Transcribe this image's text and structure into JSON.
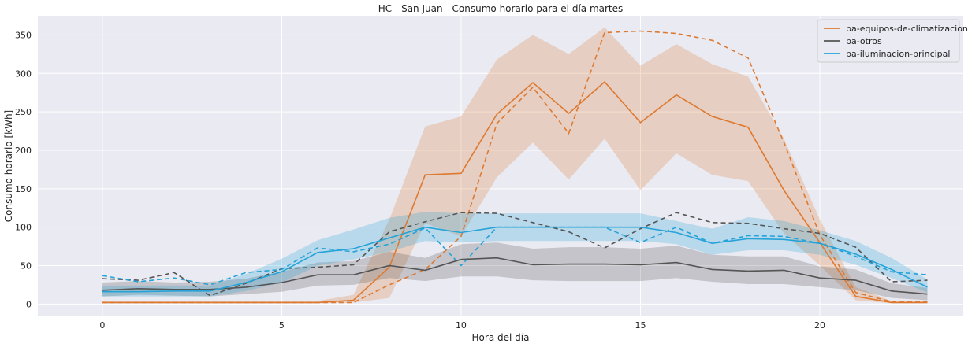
{
  "chart_data": {
    "type": "line",
    "title": "HC - San Juan - Consumo horario para el día martes",
    "xlabel": "Hora del día",
    "ylabel": "Consumo horario [kWh]",
    "xlim": [
      -1.8,
      24.0
    ],
    "ylim": [
      -16,
      375
    ],
    "xticks": [
      0,
      5,
      10,
      15,
      20
    ],
    "yticks": [
      0,
      50,
      100,
      150,
      200,
      250,
      300,
      350
    ],
    "grid": true,
    "legend_position": "top-right",
    "x": [
      0,
      1,
      2,
      3,
      4,
      5,
      6,
      7,
      8,
      9,
      10,
      11,
      12,
      13,
      14,
      15,
      16,
      17,
      18,
      19,
      20,
      21,
      22,
      23
    ],
    "series": [
      {
        "name": "pa-equipos-de-climatizacion",
        "color": "#dd7a32",
        "values": [
          2,
          2,
          2,
          2,
          2,
          2,
          2,
          5,
          48,
          168,
          170,
          247,
          288,
          248,
          289,
          236,
          272,
          244,
          230,
          148,
          80,
          10,
          2,
          2
        ],
        "band_low": [
          1,
          1,
          1,
          1,
          1,
          1,
          1,
          2,
          8,
          105,
          88,
          165,
          210,
          162,
          215,
          148,
          196,
          168,
          160,
          92,
          50,
          5,
          1,
          1
        ],
        "band_high": [
          4,
          4,
          4,
          4,
          4,
          4,
          4,
          12,
          110,
          231,
          244,
          318,
          350,
          325,
          360,
          310,
          338,
          312,
          296,
          215,
          110,
          22,
          4,
          4
        ],
        "dashed_values": [
          2,
          2,
          2,
          2,
          2,
          2,
          2,
          2,
          25,
          45,
          88,
          235,
          282,
          222,
          353,
          355,
          352,
          343,
          320,
          210,
          90,
          15,
          3,
          3
        ]
      },
      {
        "name": "pa-otros",
        "color": "#555555",
        "values": [
          18,
          20,
          19,
          19,
          22,
          28,
          38,
          38,
          50,
          44,
          58,
          60,
          51,
          52,
          52,
          51,
          54,
          45,
          43,
          44,
          34,
          31,
          17,
          13
        ],
        "band_low": [
          10,
          12,
          11,
          10,
          13,
          16,
          24,
          25,
          34,
          30,
          36,
          36,
          31,
          30,
          30,
          30,
          34,
          29,
          26,
          26,
          22,
          18,
          8,
          5
        ],
        "band_high": [
          28,
          30,
          28,
          29,
          33,
          42,
          54,
          56,
          68,
          60,
          78,
          80,
          72,
          74,
          74,
          72,
          76,
          64,
          62,
          62,
          49,
          45,
          27,
          21
        ],
        "dashed_values": [
          33,
          31,
          41,
          11,
          27,
          46,
          48,
          51,
          94,
          107,
          119,
          118,
          106,
          94,
          73,
          98,
          119,
          106,
          105,
          98,
          92,
          74,
          29,
          31
        ]
      },
      {
        "name": "pa-iluminacion-principal",
        "color": "#25a3d8",
        "values": [
          16,
          16,
          17,
          17,
          28,
          42,
          67,
          72,
          86,
          100,
          93,
          100,
          100,
          100,
          100,
          100,
          93,
          79,
          85,
          84,
          79,
          65,
          45,
          22
        ],
        "band_low": [
          10,
          10,
          10,
          10,
          17,
          28,
          50,
          58,
          68,
          82,
          80,
          82,
          82,
          82,
          82,
          82,
          78,
          64,
          70,
          70,
          64,
          51,
          34,
          15
        ],
        "band_high": [
          24,
          24,
          24,
          24,
          39,
          59,
          83,
          97,
          112,
          120,
          118,
          118,
          118,
          118,
          118,
          118,
          108,
          98,
          113,
          108,
          96,
          82,
          60,
          32
        ],
        "dashed_values": [
          37,
          29,
          34,
          25,
          41,
          45,
          73,
          68,
          78,
          99,
          50,
          100,
          100,
          100,
          100,
          80,
          100,
          79,
          89,
          88,
          79,
          62,
          42,
          38
        ]
      }
    ]
  }
}
